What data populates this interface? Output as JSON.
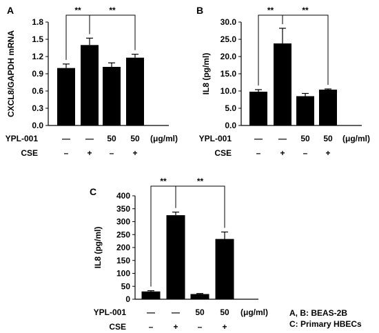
{
  "chart_data": [
    {
      "type": "bar",
      "panel_label": "A",
      "ylabel": "CXCL8/GAPDH mRNA",
      "ylim": [
        0,
        1.8
      ],
      "yticks": [
        "0.0",
        "0.3",
        "0.6",
        "0.9",
        "1.2",
        "1.5",
        "1.8"
      ],
      "values": [
        1.0,
        1.4,
        1.02,
        1.18
      ],
      "errors": [
        0.07,
        0.12,
        0.07,
        0.06
      ],
      "significance": [
        {
          "from": 0,
          "to": 1,
          "label": "**"
        },
        {
          "from": 1,
          "to": 3,
          "label": "**"
        }
      ]
    },
    {
      "type": "bar",
      "panel_label": "B",
      "ylabel": "IL8 (pg/ml)",
      "ylim": [
        0,
        30
      ],
      "yticks": [
        "0.0",
        "5.0",
        "10.0",
        "15.0",
        "20.0",
        "25.0",
        "30.0"
      ],
      "values": [
        9.8,
        23.8,
        8.5,
        10.4
      ],
      "errors": [
        0.6,
        4.4,
        0.8,
        0.2
      ],
      "significance": [
        {
          "from": 0,
          "to": 1,
          "label": "**"
        },
        {
          "from": 1,
          "to": 3,
          "label": "**"
        }
      ]
    },
    {
      "type": "bar",
      "panel_label": "C",
      "ylabel": "IL8 (pg/ml)",
      "ylim": [
        0,
        400
      ],
      "yticks": [
        "0",
        "50",
        "100",
        "150",
        "200",
        "250",
        "300",
        "350",
        "400"
      ],
      "values": [
        30,
        325,
        20,
        233
      ],
      "errors": [
        3,
        12,
        2,
        27
      ],
      "significance": [
        {
          "from": 0,
          "to": 1,
          "label": "**"
        },
        {
          "from": 1,
          "to": 3,
          "label": "**"
        }
      ]
    }
  ],
  "treatment_table": {
    "rows": [
      {
        "label": "YPL-001",
        "cells": [
          "—",
          "—",
          "50",
          "50"
        ],
        "unit": "(μg/ml)"
      },
      {
        "label": "CSE",
        "cells": [
          "–",
          "+",
          "–",
          "+"
        ],
        "unit": ""
      }
    ]
  },
  "legend_note": [
    "A, B: BEAS-2B",
    "C: Primary HBECs"
  ]
}
